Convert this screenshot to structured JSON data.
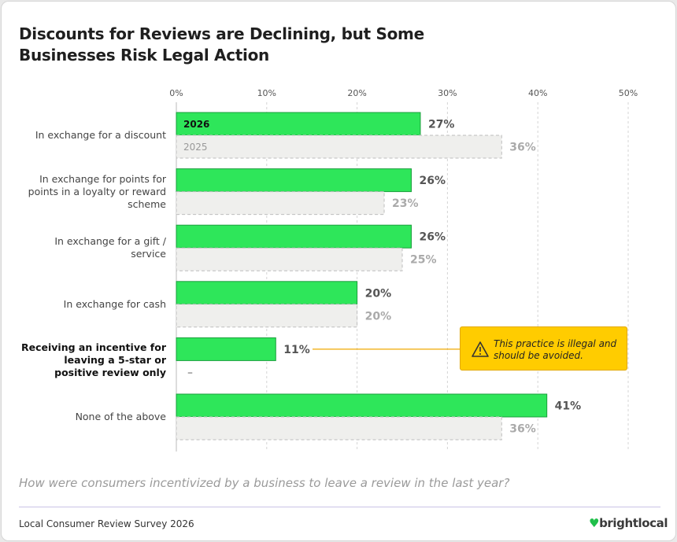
{
  "chart_data": {
    "type": "bar",
    "orientation": "horizontal",
    "title": "Discounts for Reviews are Declining, but Some Businesses Risk Legal Action",
    "subtitle": "How were consumers incentivized by a business to leave a review in the last year?",
    "source": "Local Consumer Review Survey 2026",
    "brand": "brightlocal",
    "annotation": "This practice is illegal and should be avoided.",
    "categories": [
      "In exchange for a discount",
      "In exchange for points for points in a loyalty or reward scheme",
      "In exchange for a gift / service",
      "In exchange for cash",
      "Receiving an incentive for leaving a 5-star or positive review only",
      "None of the above"
    ],
    "series": [
      {
        "name": "2026",
        "color": "#2ee65a",
        "values": [
          27,
          26,
          26,
          20,
          11,
          41
        ],
        "value_labels": [
          "27%",
          "26%",
          "26%",
          "20%",
          "11%",
          "41%"
        ]
      },
      {
        "name": "2025",
        "color": "#efefed",
        "values": [
          36,
          23,
          25,
          20,
          null,
          36
        ],
        "value_labels": [
          "36%",
          "23%",
          "25%",
          "20%",
          "–",
          "36%"
        ]
      }
    ],
    "xlim": [
      0,
      50
    ],
    "xticks": [
      {
        "value": 0,
        "label": "0%"
      },
      {
        "value": 10,
        "label": "10%"
      },
      {
        "value": 20,
        "label": "20%"
      },
      {
        "value": 30,
        "label": "30%"
      },
      {
        "value": 40,
        "label": "40%"
      },
      {
        "value": 50,
        "label": "50%"
      }
    ],
    "grid": true
  }
}
